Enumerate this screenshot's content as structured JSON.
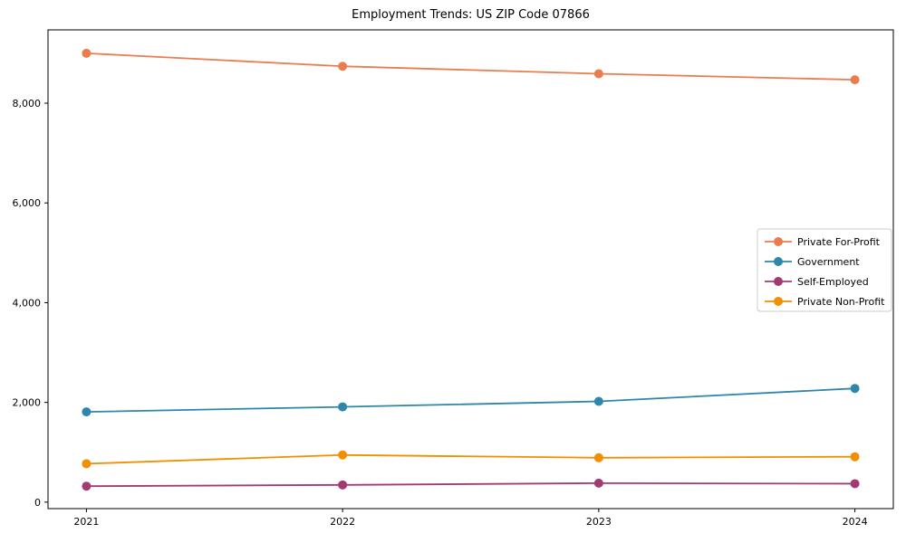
{
  "chart_data": {
    "type": "line",
    "title": "Employment Trends: US ZIP Code 07866",
    "xlabel": "",
    "ylabel": "",
    "x": [
      2021,
      2022,
      2023,
      2024
    ],
    "x_tick_labels": [
      "2021",
      "2022",
      "2023",
      "2024"
    ],
    "series": [
      {
        "name": "Private For-Profit",
        "color": "#E97D4F",
        "values": [
          9000,
          8740,
          8590,
          8470
        ]
      },
      {
        "name": "Government",
        "color": "#2E86AB",
        "values": [
          1810,
          1910,
          2020,
          2280
        ]
      },
      {
        "name": "Self-Employed",
        "color": "#A23B72",
        "values": [
          320,
          345,
          380,
          370
        ]
      },
      {
        "name": "Private Non-Profit",
        "color": "#F18F01",
        "values": [
          770,
          945,
          890,
          910
        ]
      }
    ],
    "yticks": [
      0,
      2000,
      4000,
      6000,
      8000
    ],
    "ytick_labels": [
      "0",
      "2,000",
      "4,000",
      "6,000",
      "8,000"
    ],
    "xlim": [
      2020.85,
      2024.15
    ],
    "ylim": [
      -130,
      9470
    ],
    "grid": false,
    "marker": "circle",
    "line_width": 1.8,
    "marker_radius": 5,
    "legend": {
      "position": "center-right",
      "border_color": "#cccccc",
      "background": "#ffffff"
    },
    "frame_color": "#000000"
  }
}
